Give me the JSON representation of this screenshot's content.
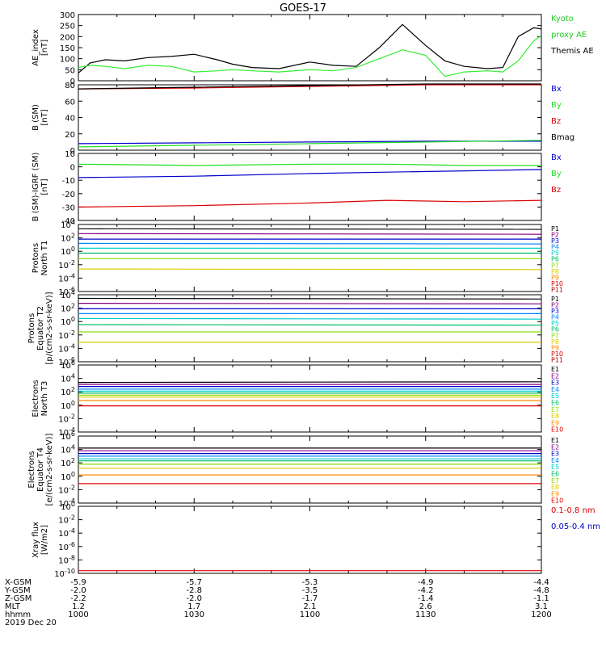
{
  "title": "GOES-17",
  "colors": {
    "black": "#000000",
    "red": "#dd0000",
    "green": "#22dd22",
    "blue": "#0000cc",
    "ae_green": "#33ee33",
    "kyoto_label": "#22cc22"
  },
  "time_axis": {
    "ticks": [
      "1000",
      "1030",
      "1100",
      "1130",
      "1200"
    ],
    "xlim_min": [
      0,
      120
    ],
    "rows": [
      {
        "label": "X-GSM",
        "values": [
          "-5.9",
          "-5.7",
          "-5.3",
          "-4.9",
          "-4.4"
        ]
      },
      {
        "label": "Y-GSM",
        "values": [
          "-2.0",
          "-2.8",
          "-3.5",
          "-4.2",
          "-4.8"
        ]
      },
      {
        "label": "Z-GSM",
        "values": [
          "-2.2",
          "-2.0",
          "-1.7",
          "-1.4",
          "-1.1"
        ]
      },
      {
        "label": "MLT",
        "values": [
          "1.2",
          "1.7",
          "2.1",
          "2.6",
          "3.1"
        ]
      },
      {
        "label": "hhmm",
        "values": [
          "1000",
          "1030",
          "1100",
          "1130",
          "1200"
        ]
      }
    ],
    "date": "2019 Dec 20"
  },
  "chart_data": [
    {
      "type": "line",
      "ylabel": [
        "AE_index",
        "[nT]"
      ],
      "ylim": [
        0,
        300
      ],
      "yticks": [
        "300",
        "250",
        "200",
        "150",
        "100",
        "50",
        "0"
      ],
      "x": [
        0,
        3,
        7,
        12,
        18,
        24,
        30,
        36,
        40,
        45,
        52,
        60,
        66,
        72,
        78,
        84,
        90,
        95,
        100,
        106,
        110,
        114,
        118,
        120
      ],
      "series": [
        {
          "name": "Themis AE",
          "color": "#000000",
          "values": [
            35,
            80,
            95,
            90,
            105,
            110,
            120,
            95,
            75,
            60,
            55,
            85,
            70,
            65,
            150,
            255,
            160,
            90,
            65,
            55,
            60,
            200,
            240,
            235
          ]
        },
        {
          "name": "Kyoto proxy AE",
          "color": "#33ee33",
          "values": [
            60,
            70,
            65,
            55,
            70,
            65,
            40,
            45,
            50,
            45,
            40,
            50,
            45,
            60,
            100,
            140,
            115,
            20,
            40,
            45,
            40,
            90,
            180,
            205
          ]
        }
      ],
      "legend": [
        {
          "text": "Kyoto",
          "color": "#22cc22"
        },
        {
          "text": "proxy AE",
          "color": "#22cc22"
        },
        {
          "text": "Themis AE",
          "color": "#000000"
        }
      ]
    },
    {
      "type": "line",
      "ylabel": [
        "B (SM)",
        "[nT]"
      ],
      "ylim": [
        0,
        80
      ],
      "yticks": [
        "80",
        "60",
        "40",
        "20",
        "0"
      ],
      "x": [
        0,
        30,
        60,
        90,
        120
      ],
      "series": [
        {
          "name": "Bx",
          "color": "#0000cc",
          "values": [
            8,
            9,
            10,
            11,
            11
          ]
        },
        {
          "name": "By",
          "color": "#22dd22",
          "values": [
            4,
            6,
            8,
            10,
            12
          ]
        },
        {
          "name": "Bz",
          "color": "#dd0000",
          "values": [
            75,
            76,
            78,
            80,
            80
          ]
        },
        {
          "name": "Bmag",
          "color": "#000000",
          "values": [
            75,
            77,
            79,
            81,
            81
          ]
        }
      ],
      "legend": [
        {
          "text": "Bx",
          "color": "#0000cc"
        },
        {
          "text": "By",
          "color": "#22dd22"
        },
        {
          "text": "Bz",
          "color": "#dd0000"
        },
        {
          "text": "Bmag",
          "color": "#000000"
        }
      ]
    },
    {
      "type": "line",
      "ylabel": [
        "B (SM)-IGRF (SM)",
        "[nT]"
      ],
      "ylim": [
        -40,
        10
      ],
      "yticks": [
        "10",
        "0",
        "-10",
        "-20",
        "-30",
        "-40"
      ],
      "x": [
        0,
        30,
        60,
        80,
        100,
        120
      ],
      "series": [
        {
          "name": "Bx",
          "color": "#0000cc",
          "values": [
            -8,
            -7,
            -5,
            -4,
            -3,
            -2
          ]
        },
        {
          "name": "By",
          "color": "#22dd22",
          "values": [
            2,
            1,
            2,
            2,
            1,
            1
          ]
        },
        {
          "name": "Bz",
          "color": "#dd0000",
          "values": [
            -30,
            -29,
            -27,
            -25,
            -26,
            -25
          ]
        }
      ],
      "legend": [
        {
          "text": "Bx",
          "color": "#0000cc"
        },
        {
          "text": "By",
          "color": "#22dd22"
        },
        {
          "text": "Bz",
          "color": "#dd0000"
        }
      ]
    },
    {
      "type": "line",
      "ylabel": [
        "Protons",
        "North T1"
      ],
      "ylim": [
        -7,
        4
      ],
      "yticks": [
        "10^4",
        "10^2",
        "10^0",
        "10^-2",
        "10^-4",
        "10^-6"
      ],
      "x": [
        0,
        120
      ],
      "series": [
        {
          "name": "P1",
          "color": "#000000",
          "values": [
            3.3,
            3.2
          ]
        },
        {
          "name": "P2",
          "color": "#880088",
          "values": [
            2.5,
            2.4
          ]
        },
        {
          "name": "P3",
          "color": "#0000cc",
          "values": [
            1.6,
            1.6
          ]
        },
        {
          "name": "P4",
          "color": "#0088ff",
          "values": [
            0.9,
            0.8
          ]
        },
        {
          "name": "P5",
          "color": "#00cccc",
          "values": [
            0.1,
            0.1
          ]
        },
        {
          "name": "P6",
          "color": "#00bb66",
          "values": [
            -0.7,
            -0.7
          ]
        },
        {
          "name": "P7",
          "color": "#88dd00",
          "values": [
            -1.6,
            -1.6
          ]
        },
        {
          "name": "P8",
          "color": "#ddcc00",
          "values": [
            -3.3,
            -3.4
          ]
        }
      ],
      "legend": [
        {
          "text": "P1",
          "color": "#000000"
        },
        {
          "text": "P2",
          "color": "#880088"
        },
        {
          "text": "P3",
          "color": "#0000cc"
        },
        {
          "text": "P4",
          "color": "#0088ff"
        },
        {
          "text": "P5",
          "color": "#00cccc"
        },
        {
          "text": "P6",
          "color": "#00bb66"
        },
        {
          "text": "P7",
          "color": "#88dd00"
        },
        {
          "text": "P8",
          "color": "#ddcc00"
        },
        {
          "text": "P9",
          "color": "#ff8800"
        },
        {
          "text": "P10",
          "color": "#dd0000"
        },
        {
          "text": "P11",
          "color": "#aa0000"
        }
      ]
    },
    {
      "type": "line",
      "ylabel": [
        "Protons",
        "Equator T2",
        "[p/(cm2-s-sr-keV)]"
      ],
      "ylim": [
        -7,
        4
      ],
      "yticks": [
        "10^4",
        "10^2",
        "10^0",
        "10^-2",
        "10^-4",
        "10^-6"
      ],
      "x": [
        0,
        120
      ],
      "series": [
        {
          "name": "P1",
          "color": "#000000",
          "values": [
            3.4,
            3.3
          ]
        },
        {
          "name": "P2",
          "color": "#880088",
          "values": [
            2.6,
            2.5
          ]
        },
        {
          "name": "P3",
          "color": "#0000cc",
          "values": [
            1.7,
            1.7
          ]
        },
        {
          "name": "P4",
          "color": "#0088ff",
          "values": [
            0.9,
            0.9
          ]
        },
        {
          "name": "P5",
          "color": "#00cccc",
          "values": [
            0.1,
            0.0
          ]
        },
        {
          "name": "P6",
          "color": "#00bb66",
          "values": [
            -0.9,
            -1.0
          ]
        },
        {
          "name": "P7",
          "color": "#88dd00",
          "values": [
            -2.1,
            -2.1
          ]
        },
        {
          "name": "P8",
          "color": "#ddcc00",
          "values": [
            -3.8,
            -3.8
          ]
        }
      ],
      "legend": [
        {
          "text": "P1",
          "color": "#000000"
        },
        {
          "text": "P2",
          "color": "#880088"
        },
        {
          "text": "P3",
          "color": "#0000cc"
        },
        {
          "text": "P4",
          "color": "#0088ff"
        },
        {
          "text": "P5",
          "color": "#00cccc"
        },
        {
          "text": "P6",
          "color": "#00bb66"
        },
        {
          "text": "P7",
          "color": "#88dd00"
        },
        {
          "text": "P8",
          "color": "#ddcc00"
        },
        {
          "text": "P9",
          "color": "#ff8800"
        },
        {
          "text": "P10",
          "color": "#dd0000"
        },
        {
          "text": "P11",
          "color": "#aa0000"
        }
      ]
    },
    {
      "type": "line",
      "ylabel": [
        "Electrons",
        "North T3"
      ],
      "ylim": [
        -4,
        6
      ],
      "yticks": [
        "10^6",
        "10^4",
        "10^2",
        "10^0",
        "10^-2",
        "10^-4"
      ],
      "x": [
        0,
        120
      ],
      "series": [
        {
          "name": "E1",
          "color": "#000000",
          "values": [
            3.4,
            3.5
          ]
        },
        {
          "name": "E2",
          "color": "#880088",
          "values": [
            3.1,
            3.1
          ]
        },
        {
          "name": "E3",
          "color": "#0000cc",
          "values": [
            2.8,
            2.8
          ]
        },
        {
          "name": "E4",
          "color": "#0088ff",
          "values": [
            2.4,
            2.4
          ]
        },
        {
          "name": "E5",
          "color": "#00cccc",
          "values": [
            2.1,
            2.1
          ]
        },
        {
          "name": "E6",
          "color": "#00bb66",
          "values": [
            1.8,
            1.8
          ]
        },
        {
          "name": "E7",
          "color": "#88dd00",
          "values": [
            1.5,
            1.5
          ]
        },
        {
          "name": "E8",
          "color": "#ddcc00",
          "values": [
            1.2,
            1.2
          ]
        },
        {
          "name": "E9",
          "color": "#ff8800",
          "values": [
            0.7,
            0.7
          ]
        },
        {
          "name": "E10",
          "color": "#dd0000",
          "values": [
            -0.1,
            -0.1
          ]
        }
      ],
      "legend": [
        {
          "text": "E1",
          "color": "#000000"
        },
        {
          "text": "E2",
          "color": "#880088"
        },
        {
          "text": "E3",
          "color": "#0000cc"
        },
        {
          "text": "E4",
          "color": "#0088ff"
        },
        {
          "text": "E5",
          "color": "#00cccc"
        },
        {
          "text": "E6",
          "color": "#00bb66"
        },
        {
          "text": "E7",
          "color": "#88dd00"
        },
        {
          "text": "E8",
          "color": "#ddcc00"
        },
        {
          "text": "E9",
          "color": "#ff8800"
        },
        {
          "text": "E10",
          "color": "#dd0000"
        }
      ]
    },
    {
      "type": "line",
      "ylabel": [
        "Electrons",
        "Equator T4",
        "[e/(cm2-s-sr-keV)]"
      ],
      "ylim": [
        -4,
        6
      ],
      "yticks": [
        "10^6",
        "10^4",
        "10^2",
        "10^0",
        "10^-2",
        "10^-4"
      ],
      "x": [
        0,
        120
      ],
      "series": [
        {
          "name": "E1",
          "color": "#000000",
          "values": [
            4.2,
            4.2
          ]
        },
        {
          "name": "E2",
          "color": "#880088",
          "values": [
            3.8,
            3.8
          ]
        },
        {
          "name": "E3",
          "color": "#0000cc",
          "values": [
            3.4,
            3.4
          ]
        },
        {
          "name": "E4",
          "color": "#0088ff",
          "values": [
            3.0,
            3.0
          ]
        },
        {
          "name": "E5",
          "color": "#00cccc",
          "values": [
            2.6,
            2.6
          ]
        },
        {
          "name": "E6",
          "color": "#00bb66",
          "values": [
            2.3,
            2.3
          ]
        },
        {
          "name": "E7",
          "color": "#88dd00",
          "values": [
            1.8,
            1.8
          ]
        },
        {
          "name": "E8",
          "color": "#ddcc00",
          "values": [
            1.2,
            1.2
          ]
        },
        {
          "name": "E9",
          "color": "#ff8800",
          "values": [
            0.2,
            0.2
          ]
        },
        {
          "name": "E10",
          "color": "#dd0000",
          "values": [
            -1.1,
            -1.1
          ]
        }
      ],
      "legend": [
        {
          "text": "E1",
          "color": "#000000"
        },
        {
          "text": "E2",
          "color": "#880088"
        },
        {
          "text": "E3",
          "color": "#0000cc"
        },
        {
          "text": "E4",
          "color": "#0088ff"
        },
        {
          "text": "E5",
          "color": "#00cccc"
        },
        {
          "text": "E6",
          "color": "#00bb66"
        },
        {
          "text": "E7",
          "color": "#88dd00"
        },
        {
          "text": "E8",
          "color": "#ddcc00"
        },
        {
          "text": "E9",
          "color": "#ff8800"
        },
        {
          "text": "E10",
          "color": "#dd0000"
        }
      ]
    },
    {
      "type": "line",
      "ylabel": [
        "Xray flux",
        "[W/m2]"
      ],
      "ylim": [
        -10,
        0
      ],
      "yticks": [
        "10^0",
        "10^-2",
        "10^-4",
        "10^-6",
        "10^-8",
        "10^-10"
      ],
      "x": [
        0,
        120
      ],
      "series": [
        {
          "name": "0.1-0.8 nm",
          "color": "#dd0000",
          "values": [
            -9.6,
            -9.6
          ]
        }
      ],
      "legend": [
        {
          "text": "0.1-0.8 nm",
          "color": "#dd0000"
        },
        {
          "text": "0.05-0.4 nm",
          "color": "#0000cc"
        }
      ]
    }
  ]
}
